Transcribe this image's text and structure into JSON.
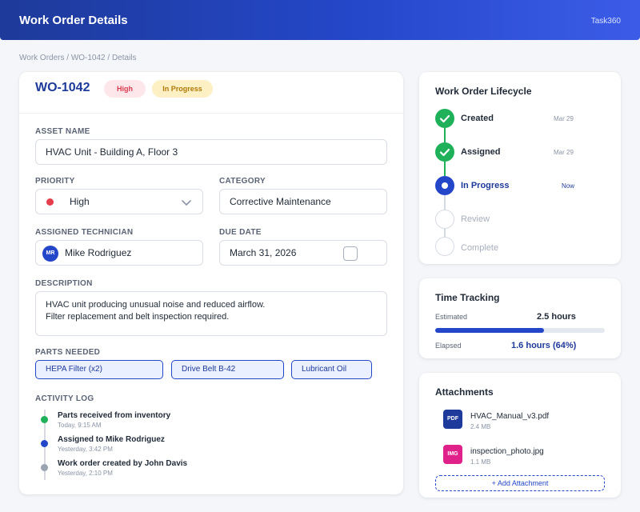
{
  "header": {
    "title": "Work Order Details",
    "brand": "Task360"
  },
  "breadcrumb": "Work Orders / WO-1042 / Details",
  "work_order": {
    "id": "WO-1042",
    "badges": {
      "priority": "High",
      "status": "In Progress"
    },
    "asset_name_label": "ASSET NAME",
    "asset_name": "HVAC Unit - Building A, Floor 3",
    "priority_label": "PRIORITY",
    "priority": "High",
    "category_label": "CATEGORY",
    "category": "Corrective Maintenance",
    "technician_label": "ASSIGNED TECHNICIAN",
    "technician_initials": "MR",
    "technician": "Mike Rodriguez",
    "due_date_label": "DUE DATE",
    "due_date": "March 31, 2026",
    "description_label": "DESCRIPTION",
    "description_line1": "HVAC unit producing unusual noise and reduced airflow.",
    "description_line2": "Filter replacement and belt inspection required.",
    "parts_label": "PARTS NEEDED",
    "parts": [
      "HEPA Filter (x2)",
      "Drive Belt B-42",
      "Lubricant Oil"
    ],
    "activity_label": "ACTIVITY LOG",
    "activity": [
      {
        "title": "Parts received from inventory",
        "time": "Today, 9:15 AM",
        "color": "#1fb15a"
      },
      {
        "title": "Assigned to Mike Rodriguez",
        "time": "Yesterday, 3:42 PM",
        "color": "#2447c9"
      },
      {
        "title": "Work order created by John Davis",
        "time": "Yesterday, 2:10 PM",
        "color": "#9aa3b2"
      }
    ]
  },
  "lifecycle": {
    "title": "Work Order Lifecycle",
    "steps": [
      {
        "label": "Created",
        "date": "Mar 29",
        "state": "done"
      },
      {
        "label": "Assigned",
        "date": "Mar 29",
        "state": "done"
      },
      {
        "label": "In Progress",
        "date": "Now",
        "state": "active"
      },
      {
        "label": "Review",
        "date": "",
        "state": "todo"
      },
      {
        "label": "Complete",
        "date": "",
        "state": "todo"
      }
    ]
  },
  "time_tracking": {
    "title": "Time Tracking",
    "estimated_label": "Estimated",
    "estimated": "2.5 hours",
    "elapsed_label": "Elapsed",
    "elapsed": "1.6 hours (64%)",
    "progress_fraction": 0.64
  },
  "attachments": {
    "title": "Attachments",
    "files": [
      {
        "type": "PDF",
        "name": "HVAC_Manual_v3.pdf",
        "size": "2.4 MB",
        "color": "#1e3a9a"
      },
      {
        "type": "IMG",
        "name": "inspection_photo.jpg",
        "size": "1.1 MB",
        "color": "#e0218a"
      }
    ],
    "add_label": "+ Add Attachment"
  }
}
